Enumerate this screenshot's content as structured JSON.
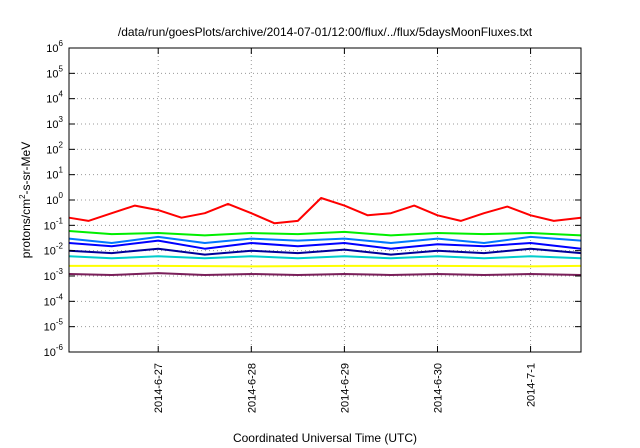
{
  "chart_data": {
    "type": "line",
    "title": "/data/run/goesPlots/archive/2014-07-01/12:00/flux/../flux/5daysMoonFluxes.txt",
    "xlabel": "Coordinated Universal Time (UTC)",
    "ylabel": "protons/cm2-s-sr-MeV",
    "y_scale": "log",
    "ylim": [
      1e-06,
      1000000.0
    ],
    "y_ticks": [
      {
        "value": 1e-06,
        "base": "10",
        "exp": "-6"
      },
      {
        "value": 1e-05,
        "base": "10",
        "exp": "-5"
      },
      {
        "value": 0.0001,
        "base": "10",
        "exp": "-4"
      },
      {
        "value": 0.001,
        "base": "10",
        "exp": "-3"
      },
      {
        "value": 0.01,
        "base": "10",
        "exp": "-2"
      },
      {
        "value": 0.1,
        "base": "10",
        "exp": "-1"
      },
      {
        "value": 1,
        "base": "10",
        "exp": "0"
      },
      {
        "value": 10,
        "base": "10",
        "exp": "1"
      },
      {
        "value": 100,
        "base": "10",
        "exp": "2"
      },
      {
        "value": 1000,
        "base": "10",
        "exp": "3"
      },
      {
        "value": 10000,
        "base": "10",
        "exp": "4"
      },
      {
        "value": 100000,
        "base": "10",
        "exp": "5"
      },
      {
        "value": 1000000,
        "base": "10",
        "exp": "6"
      }
    ],
    "xlim": [
      "2014-06-26T01:00",
      "2014-07-01T13:00"
    ],
    "x_ticks": [
      "2014-6-27",
      "2014-6-28",
      "2014-6-29",
      "2014-6-30",
      "2014-7-1"
    ],
    "x_tick_dates": [
      "2014-06-27T00:00",
      "2014-06-28T00:00",
      "2014-06-29T00:00",
      "2014-06-30T00:00",
      "2014-07-01T00:00"
    ],
    "grid": true,
    "series": [
      {
        "color": "#ff0000",
        "x": [
          "2014-06-26T01:00",
          "2014-06-26T06:00",
          "2014-06-26T12:00",
          "2014-06-26T18:00",
          "2014-06-27T00:00",
          "2014-06-27T06:00",
          "2014-06-27T12:00",
          "2014-06-27T18:00",
          "2014-06-28T00:00",
          "2014-06-28T06:00",
          "2014-06-28T12:00",
          "2014-06-28T18:00",
          "2014-06-29T00:00",
          "2014-06-29T06:00",
          "2014-06-29T12:00",
          "2014-06-29T18:00",
          "2014-06-30T00:00",
          "2014-06-30T06:00",
          "2014-06-30T12:00",
          "2014-06-30T18:00",
          "2014-07-01T00:00",
          "2014-07-01T06:00",
          "2014-07-01T13:00"
        ],
        "values": [
          0.2,
          0.15,
          0.3,
          0.6,
          0.4,
          0.2,
          0.3,
          0.7,
          0.3,
          0.12,
          0.15,
          1.2,
          0.6,
          0.25,
          0.3,
          0.6,
          0.25,
          0.15,
          0.3,
          0.55,
          0.25,
          0.15,
          0.2
        ]
      },
      {
        "color": "#00ee00",
        "x": [
          "2014-06-26T01:00",
          "2014-06-26T12:00",
          "2014-06-27T00:00",
          "2014-06-27T12:00",
          "2014-06-28T00:00",
          "2014-06-28T12:00",
          "2014-06-29T00:00",
          "2014-06-29T12:00",
          "2014-06-30T00:00",
          "2014-06-30T12:00",
          "2014-07-01T00:00",
          "2014-07-01T13:00"
        ],
        "values": [
          0.06,
          0.045,
          0.05,
          0.04,
          0.05,
          0.045,
          0.055,
          0.04,
          0.05,
          0.045,
          0.05,
          0.04
        ]
      },
      {
        "color": "#0000ff",
        "x": [
          "2014-06-26T01:00",
          "2014-06-26T12:00",
          "2014-06-27T00:00",
          "2014-06-27T12:00",
          "2014-06-28T00:00",
          "2014-06-28T12:00",
          "2014-06-29T00:00",
          "2014-06-29T12:00",
          "2014-06-30T00:00",
          "2014-06-30T12:00",
          "2014-07-01T00:00",
          "2014-07-01T13:00"
        ],
        "values": [
          0.02,
          0.015,
          0.025,
          0.012,
          0.02,
          0.015,
          0.02,
          0.012,
          0.018,
          0.015,
          0.02,
          0.012
        ]
      },
      {
        "color": "#0077ff",
        "x": [
          "2014-06-26T01:00",
          "2014-06-26T12:00",
          "2014-06-27T00:00",
          "2014-06-27T12:00",
          "2014-06-28T00:00",
          "2014-06-28T12:00",
          "2014-06-29T00:00",
          "2014-06-29T12:00",
          "2014-06-30T00:00",
          "2014-06-30T12:00",
          "2014-07-01T00:00",
          "2014-07-01T13:00"
        ],
        "values": [
          0.03,
          0.02,
          0.035,
          0.02,
          0.03,
          0.025,
          0.03,
          0.02,
          0.03,
          0.02,
          0.035,
          0.025
        ]
      },
      {
        "color": "#00cccc",
        "x": [
          "2014-06-26T01:00",
          "2014-06-26T12:00",
          "2014-06-27T00:00",
          "2014-06-27T12:00",
          "2014-06-28T00:00",
          "2014-06-28T12:00",
          "2014-06-29T00:00",
          "2014-06-29T12:00",
          "2014-06-30T00:00",
          "2014-06-30T12:00",
          "2014-07-01T00:00",
          "2014-07-01T13:00"
        ],
        "values": [
          0.006,
          0.005,
          0.006,
          0.005,
          0.006,
          0.005,
          0.006,
          0.005,
          0.006,
          0.005,
          0.006,
          0.005
        ]
      },
      {
        "color": "#000099",
        "x": [
          "2014-06-26T01:00",
          "2014-06-26T12:00",
          "2014-06-27T00:00",
          "2014-06-27T12:00",
          "2014-06-28T00:00",
          "2014-06-28T12:00",
          "2014-06-29T00:00",
          "2014-06-29T12:00",
          "2014-06-30T00:00",
          "2014-06-30T12:00",
          "2014-07-01T00:00",
          "2014-07-01T13:00"
        ],
        "values": [
          0.01,
          0.008,
          0.012,
          0.007,
          0.01,
          0.008,
          0.011,
          0.007,
          0.01,
          0.008,
          0.012,
          0.008
        ]
      },
      {
        "color": "#ffff00",
        "x": [
          "2014-06-26T01:00",
          "2014-06-27T00:00",
          "2014-06-28T00:00",
          "2014-06-29T00:00",
          "2014-06-30T00:00",
          "2014-07-01T00:00",
          "2014-07-01T13:00"
        ],
        "values": [
          0.0025,
          0.0025,
          0.0024,
          0.0025,
          0.0025,
          0.0024,
          0.0025
        ]
      },
      {
        "color": "#7a1f5a",
        "x": [
          "2014-06-26T01:00",
          "2014-06-26T12:00",
          "2014-06-27T00:00",
          "2014-06-27T12:00",
          "2014-06-28T00:00",
          "2014-06-28T12:00",
          "2014-06-29T00:00",
          "2014-06-29T12:00",
          "2014-06-30T00:00",
          "2014-06-30T12:00",
          "2014-07-01T00:00",
          "2014-07-01T13:00"
        ],
        "values": [
          0.0012,
          0.0011,
          0.0013,
          0.0011,
          0.0012,
          0.0011,
          0.0012,
          0.0011,
          0.0012,
          0.0011,
          0.0012,
          0.0011
        ]
      }
    ]
  }
}
